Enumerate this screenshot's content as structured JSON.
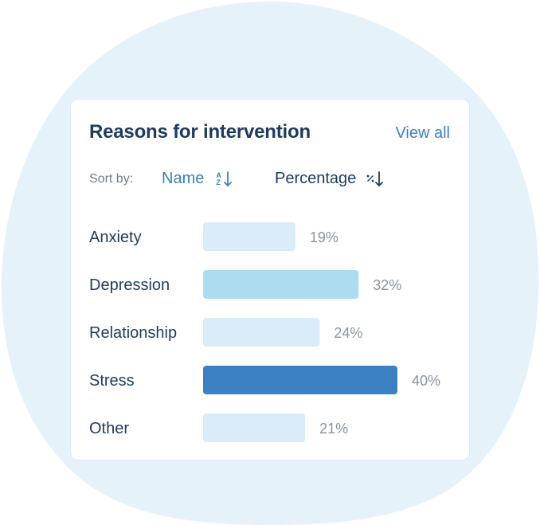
{
  "card": {
    "title": "Reasons for intervention",
    "view_all_label": "View all"
  },
  "sort": {
    "label": "Sort by:",
    "options": [
      {
        "label": "Name",
        "active": true,
        "icon": "sort-alpha-desc-icon"
      },
      {
        "label": "Percentage",
        "active": false,
        "icon": "sort-percent-desc-icon"
      }
    ]
  },
  "colors": {
    "bar_default": "#d9ecf7",
    "bar_mid": "#addcf1",
    "bar_highlight": "#3b80c3",
    "accent_text": "#3b80c3",
    "title_text": "#1f3a5f",
    "muted_text": "#8a939d",
    "background_blob": "#e5f2fa"
  },
  "chart_data": {
    "type": "bar",
    "orientation": "horizontal",
    "categories": [
      "Anxiety",
      "Depression",
      "Relationship",
      "Stress",
      "Other"
    ],
    "values": [
      19,
      32,
      24,
      40,
      21
    ],
    "value_labels": [
      "19%",
      "32%",
      "24%",
      "40%",
      "21%"
    ],
    "bar_colors": [
      "#d9ecf7",
      "#addcf1",
      "#d9ecf7",
      "#3b80c3",
      "#d9ecf7"
    ],
    "xlim": [
      0,
      40
    ],
    "grid": false
  }
}
